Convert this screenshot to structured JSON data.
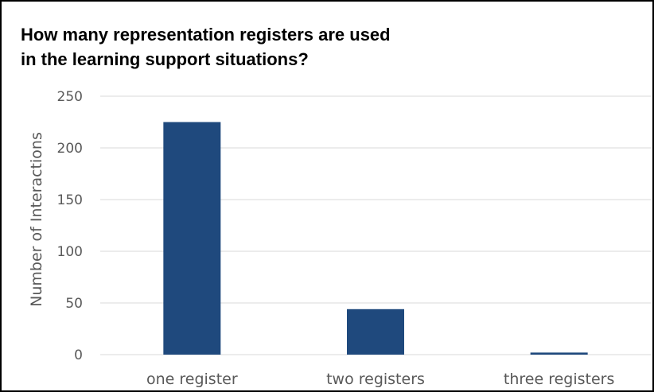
{
  "chart_data": {
    "type": "bar",
    "title": "How many representation registers are used\nin the learning support situations?",
    "xlabel": "",
    "ylabel": "Number of Interactions",
    "categories": [
      "one register",
      "two registers",
      "three registers"
    ],
    "values": [
      225,
      44,
      2
    ],
    "ylim": [
      0,
      250
    ],
    "yticks": [
      0,
      50,
      100,
      150,
      200,
      250
    ],
    "grid": true,
    "legend": "none",
    "bar_color": "#1F497D",
    "grid_color": "#D9D9D9",
    "text_color": "#595959"
  }
}
